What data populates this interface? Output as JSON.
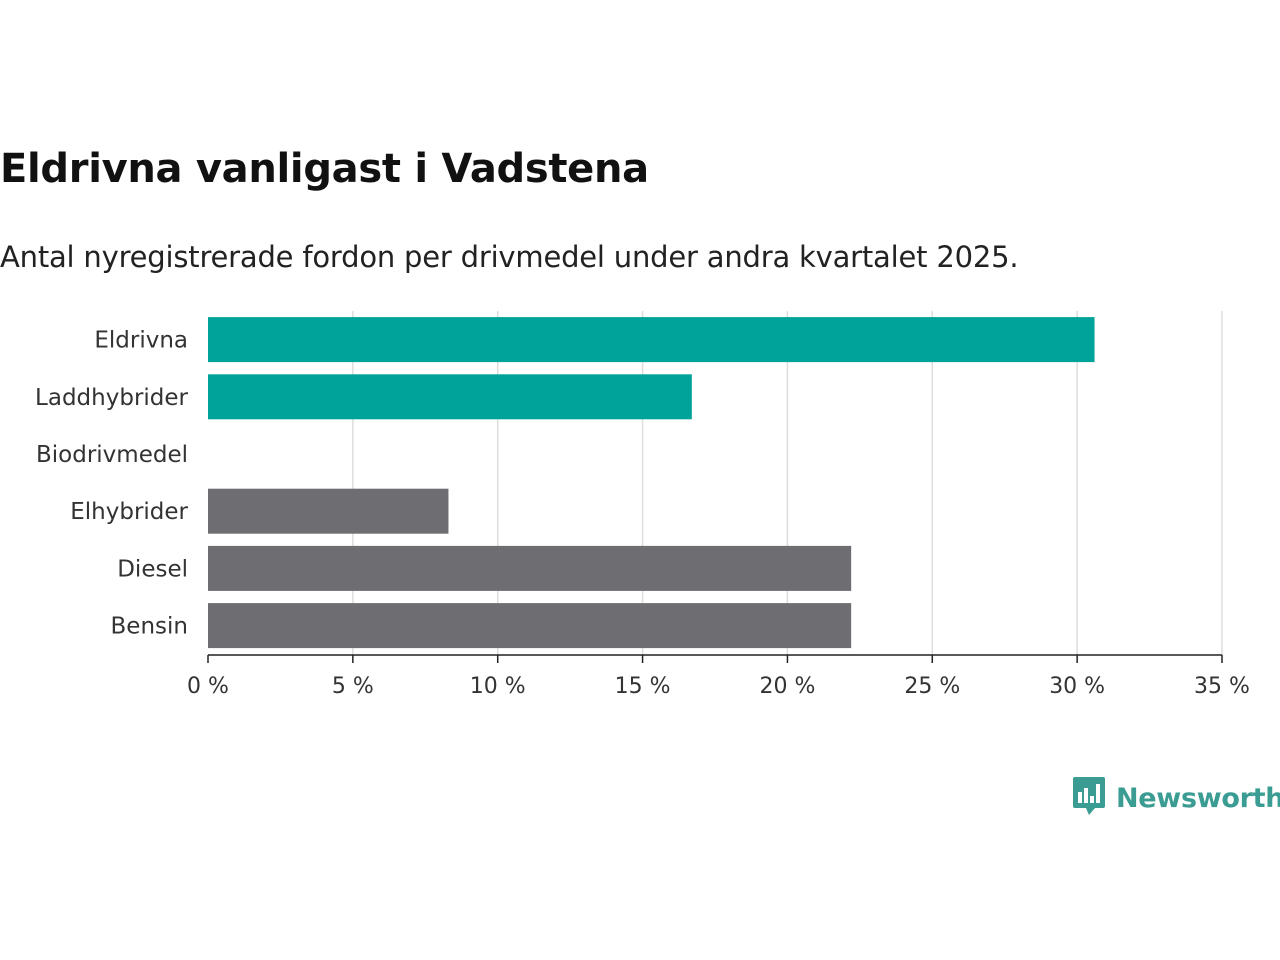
{
  "title": "Eldrivna vanligast i Vadstena",
  "subtitle": "Antal nyregistrerade fordon per drivmedel under andra kvartalet 2025.",
  "brand": {
    "name": "Newsworthy",
    "icon": "newsworthy-chart-bubble-icon",
    "color": "#3a9c92"
  },
  "colors": {
    "highlight": "#00a39a",
    "other": "#6e6d72",
    "grid": "#dddddd",
    "axis": "#222222",
    "label": "#333333"
  },
  "chart_data": {
    "type": "bar",
    "orientation": "horizontal",
    "title": "Eldrivna vanligast i Vadstena",
    "subtitle": "Antal nyregistrerade fordon per drivmedel under andra kvartalet 2025.",
    "categories": [
      "Eldrivna",
      "Laddhybrider",
      "Biodrivmedel",
      "Elhybrider",
      "Diesel",
      "Bensin"
    ],
    "values": [
      30.6,
      16.7,
      0,
      8.3,
      22.2,
      22.2
    ],
    "groups": [
      "highlight",
      "highlight",
      "highlight",
      "other",
      "other",
      "other"
    ],
    "xlim": [
      0,
      35
    ],
    "xticks": [
      0,
      5,
      10,
      15,
      20,
      25,
      30,
      35
    ],
    "tick_labels": [
      "0 %",
      "5 %",
      "10 %",
      "15 %",
      "20 %",
      "25 %",
      "30 %",
      "35 %"
    ],
    "xlabel": "",
    "ylabel": "",
    "grid": true,
    "legend": "none"
  }
}
